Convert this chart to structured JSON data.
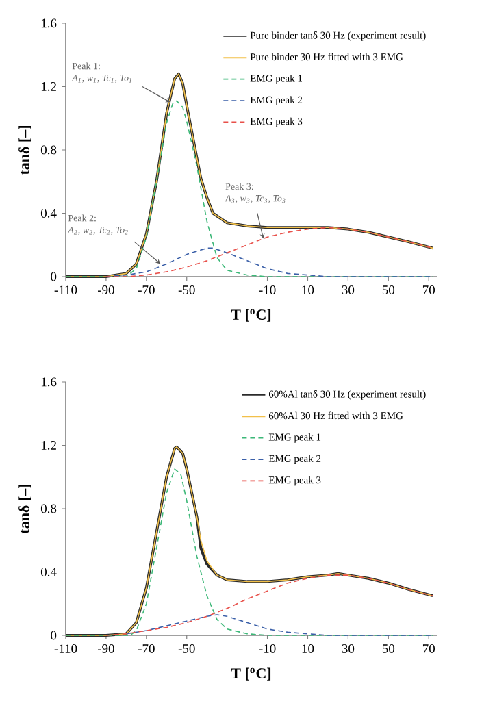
{
  "chart_data": [
    {
      "type": "line",
      "xlabel": "T [$^{o}$C]",
      "ylabel": "tanδ [–]",
      "xlim": [
        -110,
        74
      ],
      "ylim": [
        0,
        1.6
      ],
      "xticks": [
        -110,
        -90,
        -70,
        -50,
        -10,
        10,
        30,
        50,
        70
      ],
      "yticks": [
        0,
        0.4,
        0.8,
        1.2,
        1.6
      ],
      "legend": "top right",
      "series": [
        {
          "name": "Pure binder tanδ 30 Hz (experiment result)",
          "color": "#2b2b2b",
          "line_style": "solid",
          "x": [
            -110,
            -90,
            -80,
            -75,
            -70,
            -65,
            -60,
            -56,
            -54,
            -52,
            -50,
            -45,
            -43,
            -40,
            -37,
            -30,
            -20,
            -10,
            0,
            10,
            20,
            30,
            40,
            50,
            60,
            72
          ],
          "values": [
            0,
            0,
            0.02,
            0.08,
            0.27,
            0.6,
            1.03,
            1.25,
            1.28,
            1.22,
            1.08,
            0.75,
            0.62,
            0.5,
            0.4,
            0.34,
            0.32,
            0.31,
            0.31,
            0.31,
            0.31,
            0.3,
            0.28,
            0.25,
            0.22,
            0.18
          ]
        },
        {
          "name": "Pure binder 30 Hz fitted with 3 EMG",
          "color": "#f2c04a",
          "line_style": "solid",
          "x": [
            -110,
            -90,
            -80,
            -75,
            -70,
            -65,
            -60,
            -56,
            -54,
            -52,
            -50,
            -45,
            -43,
            -40,
            -37,
            -30,
            -20,
            -10,
            0,
            10,
            20,
            30,
            40,
            50,
            60,
            72
          ],
          "values": [
            0,
            0,
            0.02,
            0.08,
            0.27,
            0.6,
            1.03,
            1.25,
            1.28,
            1.22,
            1.08,
            0.75,
            0.62,
            0.5,
            0.4,
            0.34,
            0.32,
            0.31,
            0.31,
            0.31,
            0.31,
            0.3,
            0.28,
            0.25,
            0.22,
            0.18
          ]
        },
        {
          "name": "EMG peak 1",
          "color": "#3cb878",
          "line_style": "dashed",
          "x": [
            -110,
            -80,
            -75,
            -70,
            -65,
            -60,
            -57,
            -55,
            -52,
            -50,
            -45,
            -40,
            -35,
            -30,
            -20,
            -10,
            10,
            30,
            72
          ],
          "values": [
            0,
            0,
            0.05,
            0.25,
            0.6,
            0.97,
            1.09,
            1.11,
            1.07,
            0.98,
            0.7,
            0.35,
            0.12,
            0.04,
            0.01,
            0,
            0,
            0,
            0
          ]
        },
        {
          "name": "EMG peak 2",
          "color": "#3a5fa8",
          "line_style": "dashed",
          "x": [
            -90,
            -80,
            -70,
            -60,
            -50,
            -40,
            -37,
            -30,
            -20,
            -10,
            0,
            10,
            20,
            40,
            72
          ],
          "values": [
            0,
            0.01,
            0.03,
            0.08,
            0.14,
            0.18,
            0.18,
            0.15,
            0.1,
            0.05,
            0.02,
            0.01,
            0,
            0,
            0
          ]
        },
        {
          "name": "EMG peak 3",
          "color": "#e8504a",
          "line_style": "dashed",
          "x": [
            -90,
            -80,
            -70,
            -60,
            -50,
            -40,
            -30,
            -20,
            -10,
            0,
            10,
            20,
            30,
            40,
            50,
            60,
            72
          ],
          "values": [
            0,
            0,
            0.01,
            0.03,
            0.06,
            0.1,
            0.15,
            0.2,
            0.25,
            0.28,
            0.3,
            0.31,
            0.3,
            0.28,
            0.25,
            0.22,
            0.18
          ]
        }
      ],
      "annotations": [
        "Peak 1:",
        {
          "text": "A$_{1}$, w$_{1}$, Tc$_{1}$, To$_{1}$",
          "x": -58,
          "y": 1.1
        },
        "Peak 2:",
        {
          "text": "A$_{2}$, w$_{2}$, Tc$_{2}$, To$_{2}$",
          "x": -63,
          "y": 0.08
        },
        "Peak 3:",
        {
          "text": "A$_{3}$, w$_{3}$, Tc$_{3}$, To$_{3}$",
          "x": -12,
          "y": 0.24
        }
      ]
    },
    {
      "type": "line",
      "xlabel": "T [$^{o}$C]",
      "ylabel": "tanδ [–]",
      "xlim": [
        -110,
        74
      ],
      "ylim": [
        0,
        1.6
      ],
      "xticks": [
        -110,
        -90,
        -70,
        -50,
        -10,
        10,
        30,
        50,
        70
      ],
      "yticks": [
        0,
        0.4,
        0.8,
        1.2,
        1.6
      ],
      "legend": "top right",
      "series": [
        {
          "name": "60%Al tanδ 30 Hz (experiment result)",
          "color": "#2b2b2b",
          "line_style": "solid",
          "x": [
            -110,
            -90,
            -80,
            -75,
            -70,
            -65,
            -60,
            -56,
            -55,
            -52,
            -50,
            -45,
            -43,
            -40,
            -35,
            -30,
            -20,
            -10,
            0,
            10,
            20,
            25,
            30,
            40,
            50,
            60,
            72
          ],
          "values": [
            0,
            0,
            0.01,
            0.08,
            0.3,
            0.65,
            1.0,
            1.18,
            1.19,
            1.15,
            1.05,
            0.75,
            0.55,
            0.45,
            0.38,
            0.35,
            0.34,
            0.34,
            0.35,
            0.37,
            0.38,
            0.39,
            0.38,
            0.36,
            0.33,
            0.29,
            0.25
          ]
        },
        {
          "name": "60%Al 30 Hz fitted with 3 EMG",
          "color": "#f2c04a",
          "line_style": "solid",
          "x": [
            -110,
            -90,
            -80,
            -75,
            -70,
            -65,
            -60,
            -56,
            -55,
            -52,
            -50,
            -45,
            -43,
            -40,
            -35,
            -30,
            -20,
            -10,
            0,
            10,
            20,
            25,
            30,
            40,
            50,
            60,
            72
          ],
          "values": [
            0,
            0,
            0.01,
            0.08,
            0.3,
            0.65,
            1.0,
            1.18,
            1.19,
            1.15,
            1.05,
            0.75,
            0.6,
            0.47,
            0.38,
            0.35,
            0.34,
            0.34,
            0.35,
            0.37,
            0.38,
            0.39,
            0.38,
            0.36,
            0.33,
            0.29,
            0.25
          ]
        },
        {
          "name": "EMG peak 1",
          "color": "#3cb878",
          "line_style": "dashed",
          "x": [
            -110,
            -78,
            -75,
            -70,
            -65,
            -60,
            -56,
            -53,
            -50,
            -45,
            -40,
            -35,
            -30,
            -20,
            -10,
            10,
            30,
            72
          ],
          "values": [
            0,
            0,
            0.03,
            0.2,
            0.55,
            0.9,
            1.05,
            1.02,
            0.85,
            0.5,
            0.25,
            0.1,
            0.04,
            0.01,
            0,
            0,
            0,
            0
          ]
        },
        {
          "name": "EMG peak 2",
          "color": "#3a5fa8",
          "line_style": "dashed",
          "x": [
            -80,
            -70,
            -60,
            -50,
            -40,
            -35,
            -30,
            -20,
            -10,
            0,
            10,
            20,
            40,
            72
          ],
          "values": [
            0.01,
            0.03,
            0.06,
            0.09,
            0.12,
            0.13,
            0.12,
            0.08,
            0.04,
            0.02,
            0.01,
            0,
            0,
            0
          ]
        },
        {
          "name": "EMG peak 3",
          "color": "#e8504a",
          "line_style": "dashed",
          "x": [
            -90,
            -80,
            -70,
            -60,
            -50,
            -40,
            -30,
            -20,
            -10,
            0,
            10,
            20,
            30,
            40,
            50,
            60,
            72
          ],
          "values": [
            0,
            0.01,
            0.03,
            0.05,
            0.08,
            0.12,
            0.17,
            0.23,
            0.28,
            0.33,
            0.36,
            0.38,
            0.38,
            0.36,
            0.33,
            0.29,
            0.25
          ]
        }
      ]
    }
  ]
}
